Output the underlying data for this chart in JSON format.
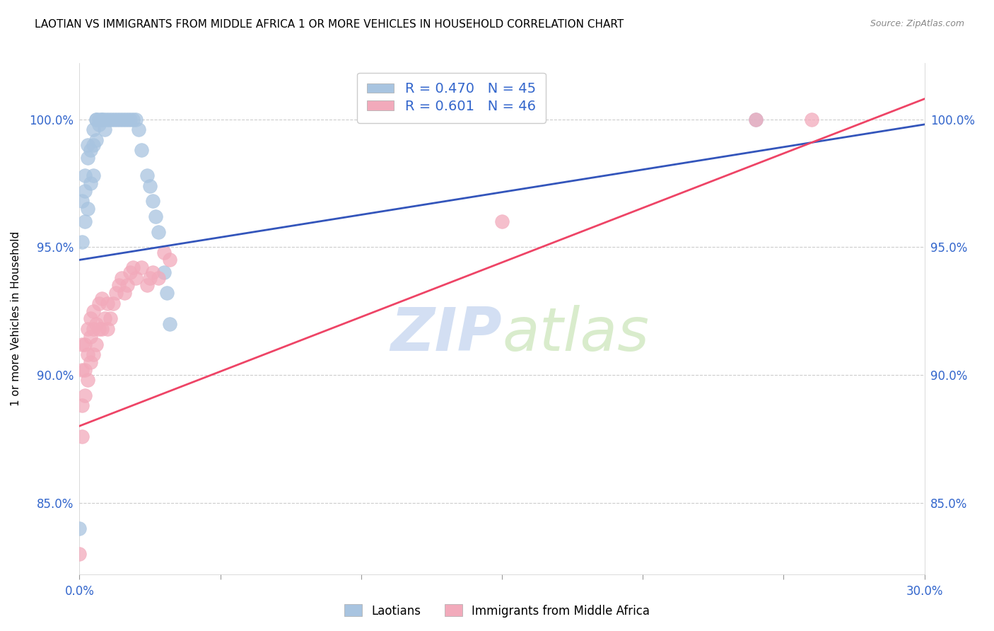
{
  "title": "LAOTIAN VS IMMIGRANTS FROM MIDDLE AFRICA 1 OR MORE VEHICLES IN HOUSEHOLD CORRELATION CHART",
  "source": "Source: ZipAtlas.com",
  "ylabel": "1 or more Vehicles in Household",
  "ytick_labels": [
    "85.0%",
    "90.0%",
    "95.0%",
    "100.0%"
  ],
  "ytick_values": [
    0.85,
    0.9,
    0.95,
    1.0
  ],
  "xmin": 0.0,
  "xmax": 0.3,
  "ymin": 0.822,
  "ymax": 1.022,
  "blue_R": "0.470",
  "blue_N": "45",
  "pink_R": "0.601",
  "pink_N": "46",
  "blue_color": "#A8C4E0",
  "pink_color": "#F2AABB",
  "blue_line_color": "#3355BB",
  "pink_line_color": "#EE4466",
  "legend_label_blue": "Laotians",
  "legend_label_pink": "Immigrants from Middle Africa",
  "watermark_zip": "ZIP",
  "watermark_atlas": "atlas",
  "blue_line_x": [
    0.0,
    0.3
  ],
  "blue_line_y": [
    0.945,
    0.998
  ],
  "pink_line_x": [
    0.0,
    0.3
  ],
  "pink_line_y": [
    0.88,
    1.008
  ],
  "blue_scatter_x": [
    0.0,
    0.001,
    0.001,
    0.002,
    0.002,
    0.002,
    0.003,
    0.003,
    0.003,
    0.004,
    0.004,
    0.005,
    0.005,
    0.005,
    0.006,
    0.006,
    0.006,
    0.007,
    0.007,
    0.008,
    0.008,
    0.009,
    0.009,
    0.01,
    0.011,
    0.012,
    0.013,
    0.014,
    0.015,
    0.016,
    0.017,
    0.018,
    0.019,
    0.02,
    0.021,
    0.022,
    0.024,
    0.025,
    0.026,
    0.027,
    0.028,
    0.03,
    0.031,
    0.032,
    0.24
  ],
  "blue_scatter_y": [
    0.84,
    0.968,
    0.952,
    0.978,
    0.972,
    0.96,
    0.99,
    0.985,
    0.965,
    0.988,
    0.975,
    0.996,
    0.99,
    0.978,
    1.0,
    1.0,
    0.992,
    1.0,
    0.998,
    1.0,
    1.0,
    1.0,
    0.996,
    1.0,
    1.0,
    1.0,
    1.0,
    1.0,
    1.0,
    1.0,
    1.0,
    1.0,
    1.0,
    1.0,
    0.996,
    0.988,
    0.978,
    0.974,
    0.968,
    0.962,
    0.956,
    0.94,
    0.932,
    0.92,
    1.0
  ],
  "pink_scatter_x": [
    0.0,
    0.001,
    0.001,
    0.001,
    0.001,
    0.002,
    0.002,
    0.002,
    0.003,
    0.003,
    0.003,
    0.004,
    0.004,
    0.004,
    0.005,
    0.005,
    0.005,
    0.006,
    0.006,
    0.007,
    0.007,
    0.008,
    0.008,
    0.009,
    0.01,
    0.01,
    0.011,
    0.012,
    0.013,
    0.014,
    0.015,
    0.016,
    0.017,
    0.018,
    0.019,
    0.02,
    0.022,
    0.024,
    0.025,
    0.026,
    0.028,
    0.03,
    0.032,
    0.15,
    0.24,
    0.26
  ],
  "pink_scatter_y": [
    0.83,
    0.876,
    0.888,
    0.902,
    0.912,
    0.892,
    0.902,
    0.912,
    0.898,
    0.908,
    0.918,
    0.905,
    0.915,
    0.922,
    0.908,
    0.918,
    0.925,
    0.912,
    0.92,
    0.918,
    0.928,
    0.918,
    0.93,
    0.922,
    0.918,
    0.928,
    0.922,
    0.928,
    0.932,
    0.935,
    0.938,
    0.932,
    0.935,
    0.94,
    0.942,
    0.938,
    0.942,
    0.935,
    0.938,
    0.94,
    0.938,
    0.948,
    0.945,
    0.96,
    1.0,
    1.0
  ]
}
